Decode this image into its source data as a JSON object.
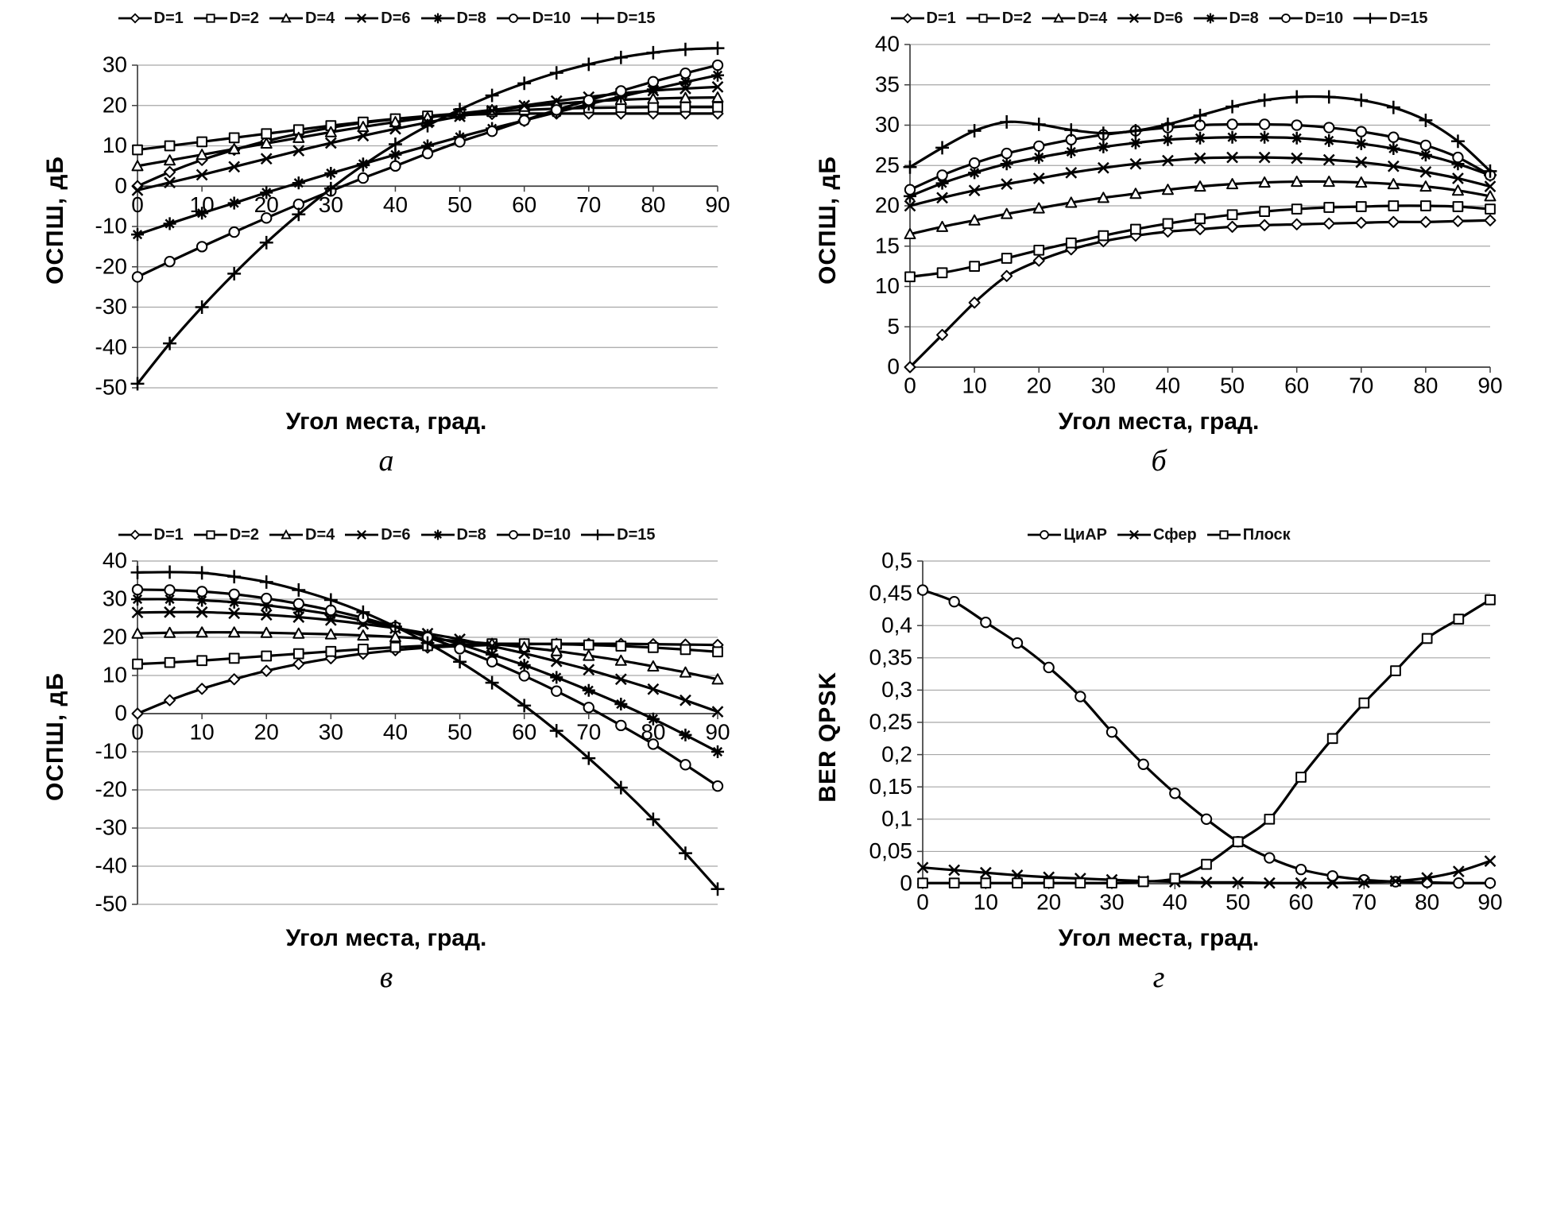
{
  "figure_background": "#ffffff",
  "line_color": "#000000",
  "gridline_color": "#a6a6a6",
  "axis_color": "#3f3f3f",
  "chart_data": [
    {
      "id": "a",
      "type": "line",
      "caption": "а",
      "ylabel": "ОСПШ, дБ",
      "xlabel": "Угол места, град.",
      "legend_position": "top",
      "grid": true,
      "ylim": [
        -50,
        30
      ],
      "yticks": [
        -50,
        -40,
        -30,
        -20,
        -10,
        0,
        10,
        20,
        30
      ],
      "ytick_labels": [
        "-50",
        "-40",
        "-30",
        "-20",
        "-10",
        "0",
        "10",
        "20",
        "30"
      ],
      "xticks": [
        0,
        10,
        20,
        30,
        40,
        50,
        60,
        70,
        80,
        90
      ],
      "x_max": 90,
      "x_labels_at_zero": true,
      "x": [
        0,
        5,
        10,
        15,
        20,
        25,
        30,
        35,
        40,
        45,
        50,
        55,
        60,
        65,
        70,
        75,
        80,
        85,
        90
      ],
      "series": [
        {
          "name": "D=1",
          "marker": "diamond",
          "values": [
            0,
            3.5,
            6.5,
            9,
            11.2,
            13,
            14.5,
            15.7,
            16.6,
            17.2,
            17.6,
            17.9,
            18,
            18,
            18,
            18,
            18,
            18,
            18
          ]
        },
        {
          "name": "D=2",
          "marker": "square",
          "values": [
            9,
            10,
            11,
            12,
            13,
            14,
            15,
            15.9,
            16.7,
            17.4,
            18,
            18.5,
            18.9,
            19.2,
            19.4,
            19.5,
            19.6,
            19.6,
            19.6
          ]
        },
        {
          "name": "D=4",
          "marker": "triangle",
          "values": [
            5,
            6.4,
            7.8,
            9.2,
            10.6,
            12,
            13.4,
            14.7,
            15.9,
            17,
            18,
            18.9,
            19.7,
            20.4,
            21,
            21.4,
            21.7,
            21.9,
            22
          ]
        },
        {
          "name": "D=6",
          "marker": "x",
          "values": [
            -1,
            0.9,
            2.8,
            4.8,
            6.8,
            8.8,
            10.7,
            12.5,
            14.2,
            15.8,
            17.3,
            18.7,
            20,
            21.1,
            22.1,
            23,
            23.7,
            24.2,
            24.6
          ]
        },
        {
          "name": "D=8",
          "marker": "asterisk",
          "values": [
            -12,
            -9.3,
            -6.7,
            -4.2,
            -1.6,
            0.8,
            3.2,
            5.5,
            7.8,
            10,
            12.2,
            14.3,
            16.3,
            18.3,
            20.3,
            22.2,
            24,
            25.8,
            27.5
          ]
        },
        {
          "name": "D=10",
          "marker": "circle",
          "values": [
            -22.5,
            -18.7,
            -15,
            -11.4,
            -7.9,
            -4.5,
            -1.2,
            2,
            5,
            8.1,
            11,
            13.6,
            16.3,
            18.9,
            21.3,
            23.6,
            25.9,
            28,
            30
          ]
        },
        {
          "name": "D=15",
          "marker": "plus",
          "values": [
            -49,
            -39,
            -30,
            -21.7,
            -14,
            -7,
            -0.6,
            5.2,
            10.4,
            15,
            19,
            22.5,
            25.5,
            28.1,
            30.2,
            31.9,
            33.1,
            33.9,
            34.2
          ]
        }
      ]
    },
    {
      "id": "b",
      "type": "line",
      "caption": "б",
      "ylabel": "ОСПШ, дБ",
      "xlabel": "Угол места, град.",
      "legend_position": "top",
      "grid": true,
      "ylim": [
        0,
        40
      ],
      "yticks": [
        0,
        5,
        10,
        15,
        20,
        25,
        30,
        35,
        40
      ],
      "ytick_labels": [
        "0",
        "5",
        "10",
        "15",
        "20",
        "25",
        "30",
        "35",
        "40"
      ],
      "xticks": [
        0,
        10,
        20,
        30,
        40,
        50,
        60,
        70,
        80,
        90
      ],
      "x_max": 90,
      "x_labels_at_zero": false,
      "x": [
        0,
        5,
        10,
        15,
        20,
        25,
        30,
        35,
        40,
        45,
        50,
        55,
        60,
        65,
        70,
        75,
        80,
        85,
        90
      ],
      "series": [
        {
          "name": "D=1",
          "marker": "diamond",
          "values": [
            0,
            4,
            8,
            11.3,
            13.2,
            14.6,
            15.6,
            16.3,
            16.8,
            17.1,
            17.4,
            17.6,
            17.7,
            17.8,
            17.9,
            18,
            18,
            18.1,
            18.2
          ]
        },
        {
          "name": "D=2",
          "marker": "square",
          "values": [
            11.2,
            11.7,
            12.5,
            13.5,
            14.5,
            15.4,
            16.3,
            17.1,
            17.8,
            18.4,
            18.9,
            19.3,
            19.6,
            19.8,
            19.9,
            20,
            20,
            19.9,
            19.6
          ]
        },
        {
          "name": "D=4",
          "marker": "triangle",
          "values": [
            16.5,
            17.4,
            18.2,
            19,
            19.7,
            20.4,
            21,
            21.5,
            22,
            22.4,
            22.7,
            22.9,
            23,
            23,
            22.9,
            22.7,
            22.4,
            21.9,
            21.2
          ]
        },
        {
          "name": "D=6",
          "marker": "x",
          "values": [
            20,
            21,
            21.9,
            22.7,
            23.4,
            24.1,
            24.7,
            25.2,
            25.6,
            25.9,
            26,
            26,
            25.9,
            25.7,
            25.4,
            24.9,
            24.2,
            23.4,
            22.4
          ]
        },
        {
          "name": "D=8",
          "marker": "asterisk",
          "values": [
            21.2,
            22.8,
            24.1,
            25.2,
            26,
            26.7,
            27.3,
            27.8,
            28.2,
            28.4,
            28.5,
            28.5,
            28.4,
            28.1,
            27.7,
            27.1,
            26.3,
            25.2,
            23.8
          ]
        },
        {
          "name": "D=10",
          "marker": "circle",
          "values": [
            22,
            23.8,
            25.3,
            26.5,
            27.4,
            28.2,
            28.8,
            29.3,
            29.7,
            30,
            30.1,
            30.1,
            30,
            29.7,
            29.2,
            28.5,
            27.5,
            26,
            23.8
          ]
        },
        {
          "name": "D=15",
          "marker": "plus",
          "values": [
            24.8,
            27.2,
            29.3,
            30.4,
            30.1,
            29.4,
            29,
            29.3,
            30.1,
            31.2,
            32.3,
            33.1,
            33.5,
            33.5,
            33.1,
            32.2,
            30.6,
            28,
            24.3
          ]
        }
      ]
    },
    {
      "id": "v",
      "type": "line",
      "caption": "в",
      "ylabel": "ОСПШ, дБ",
      "xlabel": "Угол места, град.",
      "legend_position": "top",
      "grid": true,
      "ylim": [
        -50,
        40
      ],
      "yticks": [
        -50,
        -40,
        -30,
        -20,
        -10,
        0,
        10,
        20,
        30,
        40
      ],
      "ytick_labels": [
        "-50",
        "-40",
        "-30",
        "-20",
        "-10",
        "0",
        "10",
        "20",
        "30",
        "40"
      ],
      "xticks": [
        0,
        10,
        20,
        30,
        40,
        50,
        60,
        70,
        80,
        90
      ],
      "x_max": 90,
      "x_labels_at_zero": true,
      "x": [
        0,
        5,
        10,
        15,
        20,
        25,
        30,
        35,
        40,
        45,
        50,
        55,
        60,
        65,
        70,
        75,
        80,
        85,
        90
      ],
      "series": [
        {
          "name": "D=1",
          "marker": "diamond",
          "values": [
            0,
            3.5,
            6.5,
            9,
            11.2,
            13,
            14.5,
            15.7,
            16.6,
            17.3,
            17.7,
            18,
            18.2,
            18.3,
            18.3,
            18.3,
            18.2,
            18.1,
            18
          ]
        },
        {
          "name": "D=2",
          "marker": "square",
          "values": [
            13,
            13.4,
            13.9,
            14.5,
            15.1,
            15.7,
            16.3,
            16.9,
            17.4,
            17.8,
            18.1,
            18.3,
            18.3,
            18.2,
            18,
            17.7,
            17.3,
            16.8,
            16.2
          ]
        },
        {
          "name": "D=4",
          "marker": "triangle",
          "values": [
            21,
            21.2,
            21.3,
            21.3,
            21.2,
            21,
            20.8,
            20.5,
            20.1,
            19.6,
            19,
            18.3,
            17.4,
            16.4,
            15.2,
            13.9,
            12.4,
            10.8,
            9
          ]
        },
        {
          "name": "D=6",
          "marker": "x",
          "values": [
            26.5,
            26.6,
            26.6,
            26.3,
            25.9,
            25.3,
            24.5,
            23.5,
            22.4,
            21,
            19.5,
            17.7,
            15.8,
            13.7,
            11.5,
            9,
            6.4,
            3.5,
            0.5
          ]
        },
        {
          "name": "D=8",
          "marker": "asterisk",
          "values": [
            30,
            30,
            29.7,
            29.2,
            28.4,
            27.3,
            26,
            24.4,
            22.6,
            20.5,
            18.2,
            15.5,
            12.7,
            9.5,
            6.1,
            2.5,
            -1.4,
            -5.6,
            -10
          ]
        },
        {
          "name": "D=10",
          "marker": "circle",
          "values": [
            32.5,
            32.4,
            32,
            31.3,
            30.2,
            28.8,
            27.1,
            25.1,
            22.7,
            20,
            17,
            13.6,
            9.9,
            5.9,
            1.6,
            -3.1,
            -8,
            -13.4,
            -19
          ]
        },
        {
          "name": "D=15",
          "marker": "plus",
          "values": [
            37,
            37.1,
            36.9,
            35.9,
            34.5,
            32.4,
            29.8,
            26.6,
            22.8,
            18.5,
            13.6,
            8.1,
            2.1,
            -4.5,
            -11.7,
            -19.4,
            -27.7,
            -36.6,
            -46
          ]
        }
      ]
    },
    {
      "id": "g",
      "type": "line",
      "caption": "г",
      "ylabel": "BER QPSK",
      "xlabel": "Угол места, град.",
      "legend_position": "top",
      "grid": true,
      "ylim": [
        0,
        0.5
      ],
      "yticks": [
        0,
        0.05,
        0.1,
        0.15,
        0.2,
        0.25,
        0.3,
        0.35,
        0.4,
        0.45,
        0.5
      ],
      "ytick_labels": [
        "0",
        "0,05",
        "0,1",
        "0,15",
        "0,2",
        "0,25",
        "0,3",
        "0,35",
        "0,4",
        "0,45",
        "0,5"
      ],
      "xticks": [
        0,
        10,
        20,
        30,
        40,
        50,
        60,
        70,
        80,
        90
      ],
      "x_max": 90,
      "x_labels_at_zero": false,
      "x": [
        0,
        5,
        10,
        15,
        20,
        25,
        30,
        35,
        40,
        45,
        50,
        55,
        60,
        65,
        70,
        75,
        80,
        85,
        90
      ],
      "series": [
        {
          "name": "ЦиАР",
          "marker": "circle",
          "values": [
            0.455,
            0.437,
            0.405,
            0.373,
            0.335,
            0.29,
            0.235,
            0.185,
            0.14,
            0.1,
            0.065,
            0.04,
            0.022,
            0.012,
            0.006,
            0.003,
            0.002,
            0.001,
            0.001
          ]
        },
        {
          "name": "Сфер",
          "marker": "x",
          "values": [
            0.025,
            0.021,
            0.017,
            0.013,
            0.01,
            0.008,
            0.006,
            0.004,
            0.003,
            0.002,
            0.002,
            0.001,
            0.001,
            0.001,
            0.002,
            0.004,
            0.009,
            0.019,
            0.035
          ]
        },
        {
          "name": "Плоск",
          "marker": "square",
          "values": [
            0.001,
            0.001,
            0.001,
            0.001,
            0.001,
            0.001,
            0.001,
            0.003,
            0.008,
            0.03,
            0.065,
            0.1,
            0.165,
            0.225,
            0.28,
            0.33,
            0.38,
            0.41,
            0.44
          ]
        }
      ]
    }
  ]
}
